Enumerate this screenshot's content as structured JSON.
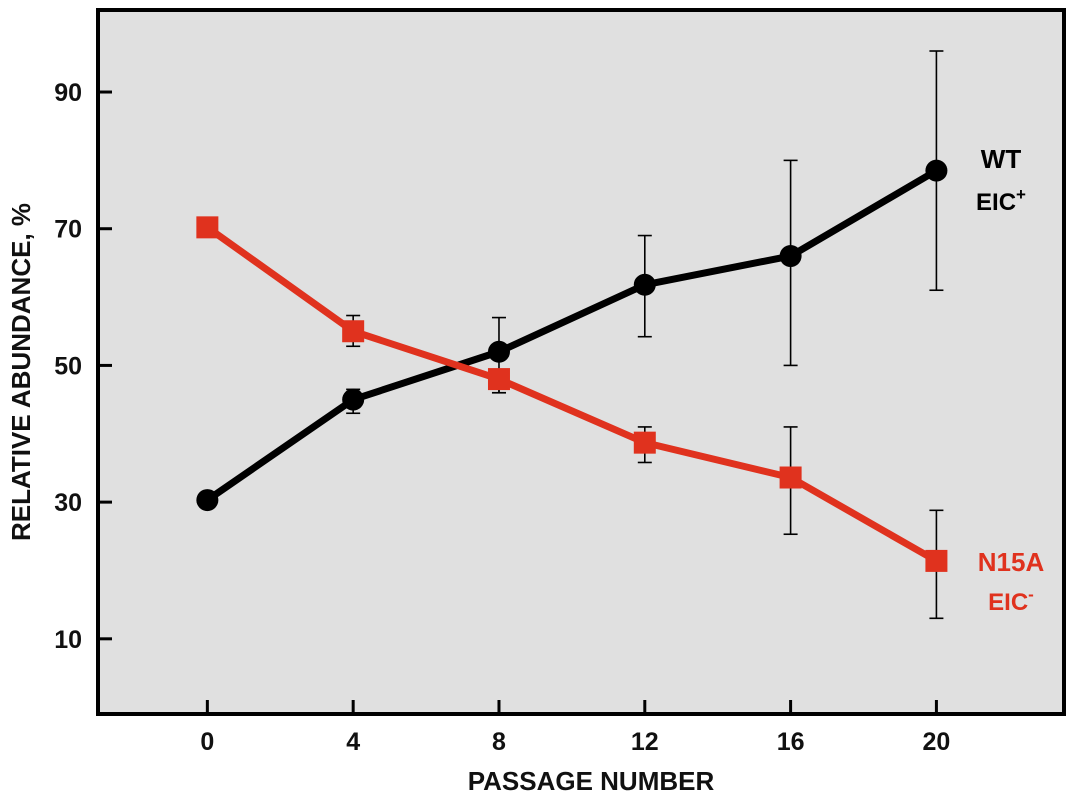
{
  "chart_data": {
    "type": "line",
    "xlabel": "PASSAGE NUMBER",
    "ylabel": "RELATIVE ABUNDANCE, %",
    "x": [
      0,
      4,
      8,
      12,
      16,
      20
    ],
    "xlim": [
      -3.0,
      23.5
    ],
    "ylim": [
      -1,
      102
    ],
    "xticks": [
      0,
      4,
      8,
      12,
      16,
      20
    ],
    "yticks": [
      10,
      30,
      50,
      70,
      90
    ],
    "grid": false,
    "background": "#e0e0e0",
    "series": [
      {
        "name": "WT",
        "subtitle": "EIC",
        "superscript": "+",
        "color": "#000000",
        "marker": "circle",
        "values": [
          30.3,
          45.0,
          52.0,
          61.8,
          66.0,
          78.5
        ],
        "err_low": [
          30.3,
          43.0,
          46.0,
          54.2,
          50.0,
          61.0
        ],
        "err_high": [
          30.3,
          46.5,
          57.0,
          69.0,
          80.0,
          96.0
        ]
      },
      {
        "name": "N15A",
        "subtitle": "EIC",
        "superscript": "-",
        "color": "#e0321e",
        "marker": "square",
        "values": [
          70.2,
          55.0,
          48.0,
          38.7,
          33.6,
          21.4
        ],
        "err_low": [
          70.2,
          52.8,
          46.0,
          35.8,
          25.3,
          13.0
        ],
        "err_high": [
          70.2,
          57.3,
          48.0,
          41.0,
          41.0,
          28.8
        ]
      }
    ]
  }
}
